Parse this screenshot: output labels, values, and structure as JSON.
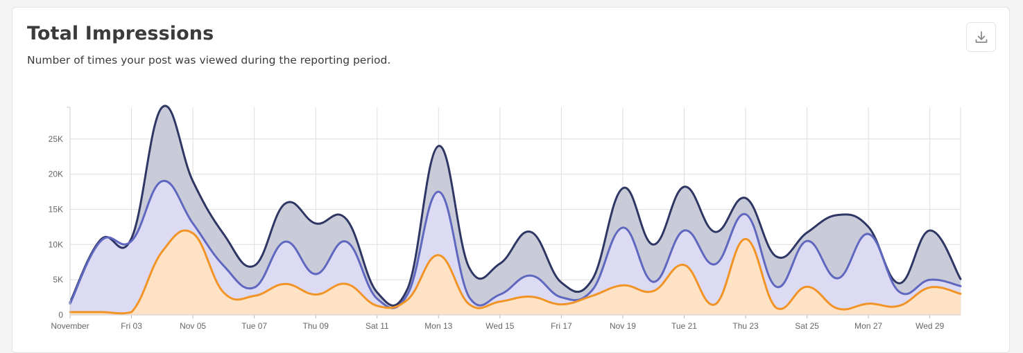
{
  "header": {
    "title": "Total Impressions",
    "subtitle": "Number of times your post was viewed during the reporting period."
  },
  "download_button": {
    "icon": "download-icon"
  },
  "colors": {
    "grid": "#dedede",
    "series_top_stroke": "#2e3663",
    "series_top_fill": "#c9cbd9",
    "series_mid_stroke": "#5f67bf",
    "series_mid_fill": "#dcdbf3",
    "series_bottom_stroke": "#f29325",
    "series_bottom_fill": "#fde2c6"
  },
  "chart_data": {
    "type": "area",
    "stacked": false,
    "x_labels": [
      "November",
      "Fri 03",
      "Nov 05",
      "Tue 07",
      "Thu 09",
      "Sat 11",
      "Mon 13",
      "Wed 15",
      "Fri 17",
      "Nov 19",
      "Tue 21",
      "Thu 23",
      "Sat 25",
      "Mon 27",
      "Wed 29"
    ],
    "x_days": [
      1,
      2,
      3,
      4,
      5,
      6,
      7,
      8,
      9,
      10,
      11,
      12,
      13,
      14,
      15,
      16,
      17,
      18,
      19,
      20,
      21,
      22,
      23,
      24,
      25,
      26,
      27,
      28,
      29,
      30
    ],
    "y_ticks": [
      "0",
      "5K",
      "10K",
      "15K",
      "20K",
      "25K"
    ],
    "y_tick_values": [
      0,
      5000,
      10000,
      15000,
      20000,
      25000
    ],
    "ylim": [
      0,
      29500
    ],
    "grid": true,
    "series": [
      {
        "role": "top",
        "values": [
          1800,
          10700,
          10900,
          29500,
          19000,
          11500,
          7000,
          15800,
          13000,
          13600,
          3200,
          3800,
          24000,
          6700,
          7300,
          11800,
          4600,
          5000,
          18000,
          10000,
          18200,
          11800,
          16600,
          8300,
          11700,
          14200,
          12500,
          4500,
          12000,
          5100
        ]
      },
      {
        "role": "mid",
        "values": [
          1600,
          10500,
          10500,
          19000,
          13000,
          7000,
          3900,
          10400,
          5800,
          10400,
          2300,
          3000,
          17500,
          2500,
          2900,
          5600,
          2500,
          3500,
          12400,
          4700,
          12000,
          7200,
          14300,
          4000,
          10500,
          5200,
          11500,
          3300,
          5000,
          4100
        ]
      },
      {
        "role": "bottom",
        "values": [
          400,
          400,
          400,
          9000,
          11600,
          3200,
          2700,
          4400,
          2900,
          4400,
          1300,
          2200,
          8500,
          1500,
          1900,
          2600,
          1500,
          2700,
          4200,
          3400,
          7100,
          1500,
          10800,
          1000,
          4000,
          900,
          1600,
          1300,
          3900,
          3000
        ]
      }
    ]
  }
}
